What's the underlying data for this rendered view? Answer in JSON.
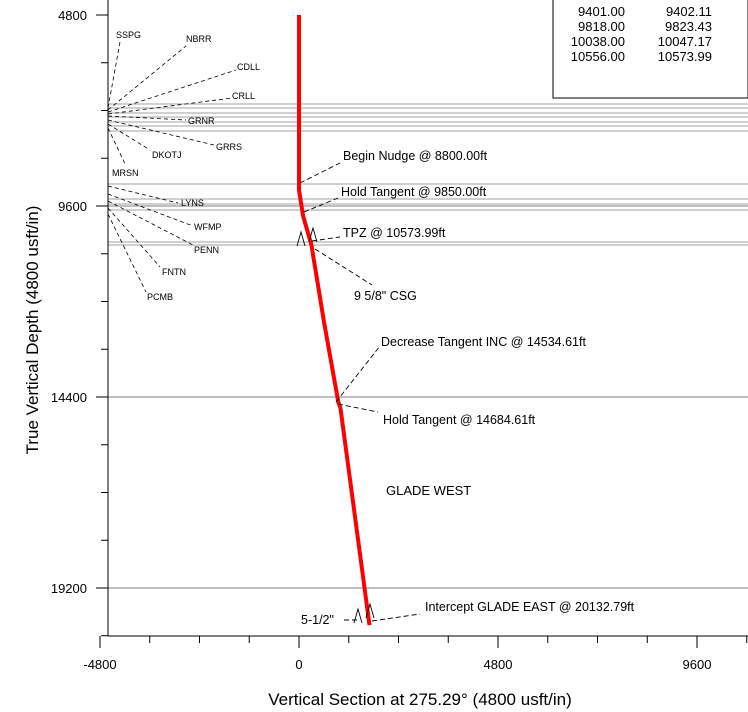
{
  "chart_data": {
    "type": "line",
    "xlabel": "Vertical Section at 275.29° (4800 usft/in)",
    "ylabel": "True Vertical Depth (4800 usft/in)",
    "x_ticks": [
      "-4800",
      "0",
      "4800",
      "9600"
    ],
    "y_ticks": [
      "4800",
      "9600",
      "14400",
      "19200"
    ],
    "xlim": [
      -4800,
      11000
    ],
    "ylim": [
      4800,
      20900
    ],
    "y_inverted": true,
    "grid": "horizontal formation lines on the left; formation tops as thin horizontal lines across the plot",
    "series": [
      {
        "color": "#ff0000",
        "points": [
          [
            0,
            4800
          ],
          [
            0,
            8800
          ],
          [
            0,
            9200
          ],
          [
            100,
            9850
          ],
          [
            300,
            10574
          ],
          [
            600,
            12500
          ],
          [
            950,
            14535
          ],
          [
            1000,
            14685
          ],
          [
            1700,
            20133
          ]
        ]
      }
    ],
    "formations": [
      {
        "name": "SSPG",
        "tvd": 7350
      },
      {
        "name": "NBRR",
        "tvd": 7500
      },
      {
        "name": "CDLL",
        "tvd": 7550
      },
      {
        "name": "CRLL",
        "tvd": 7620
      },
      {
        "name": "GRNR",
        "tvd": 7820
      },
      {
        "name": "DKOTJ",
        "tvd": 7900
      },
      {
        "name": "GRRS",
        "tvd": 7870
      },
      {
        "name": "MRSN",
        "tvd": 8250
      },
      {
        "name": "LYNS",
        "tvd": 9401
      },
      {
        "name": "WFMP",
        "tvd": 9818
      },
      {
        "name": "PENN",
        "tvd": 10038
      },
      {
        "name": "FNTN",
        "tvd": 10556
      },
      {
        "name": "PCMB",
        "tvd": 10556
      }
    ],
    "formation_table": {
      "rows": [
        [
          "9401.00",
          "9402.11"
        ],
        [
          "9818.00",
          "9823.43"
        ],
        [
          "10038.00",
          "10047.17"
        ],
        [
          "10556.00",
          "10573.99"
        ]
      ]
    },
    "annotations": [
      {
        "text": "Begin Nudge @ 8800.00ft"
      },
      {
        "text": "Hold Tangent @ 9850.00ft"
      },
      {
        "text": "TPZ @ 10573.99ft"
      },
      {
        "text": "9 5/8\" CSG"
      },
      {
        "text": "Decrease Tangent INC @ 14534.61ft"
      },
      {
        "text": "Hold Tangent @ 14684.61ft"
      },
      {
        "text": "Intercept GLADE EAST @ 20132.79ft"
      },
      {
        "text": "5-1/2\""
      }
    ],
    "well_label": {
      "text": "GLADE WEST",
      "color": "#ff0000"
    }
  }
}
